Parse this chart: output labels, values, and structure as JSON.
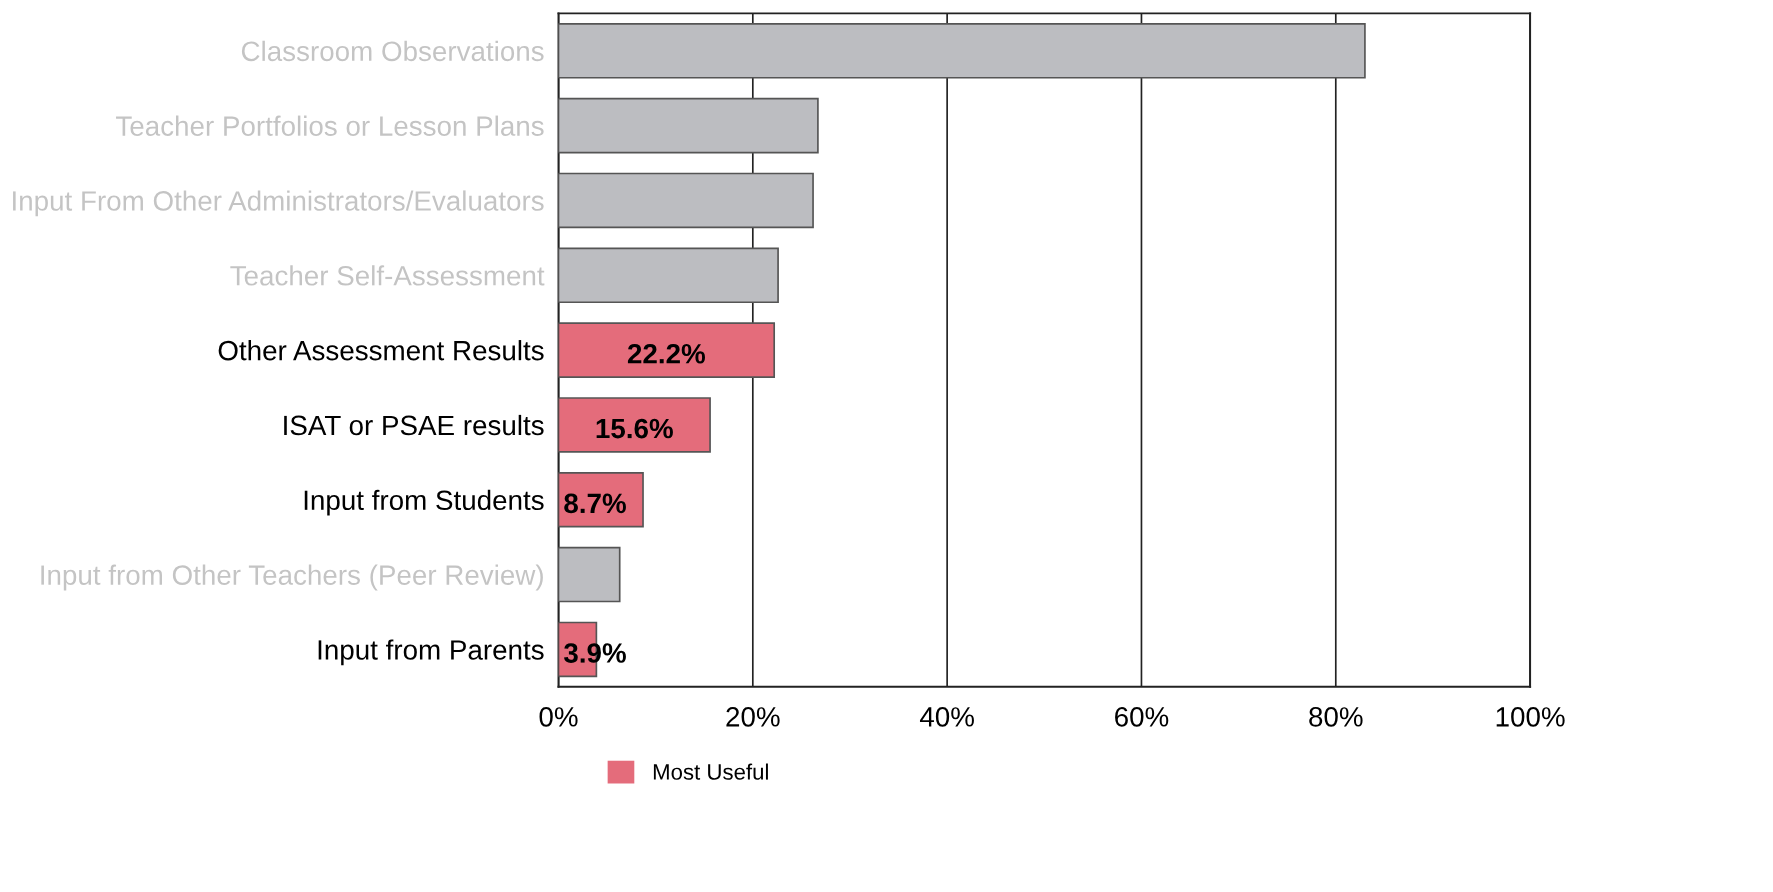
{
  "chart_data": {
    "type": "bar",
    "orientation": "horizontal",
    "categories": [
      "Classroom Observations",
      "Teacher Portfolios or Lesson Plans",
      "Input From Other Administrators/Evaluators",
      "Teacher Self-Assessment",
      "Other Assessment Results",
      "ISAT or PSAE results",
      "Input from Students",
      "Input from Other Teachers (Peer Review)",
      "Input from Parents"
    ],
    "series": [
      {
        "color": "#bcbdc1",
        "values": [
          83.0,
          26.7,
          26.2,
          22.6,
          null,
          null,
          null,
          6.3,
          null
        ]
      },
      {
        "name": "Most Useful",
        "color": "#e46c7b",
        "values": [
          null,
          null,
          null,
          null,
          22.2,
          15.6,
          8.7,
          null,
          3.9
        ],
        "value_labels": [
          null,
          null,
          null,
          null,
          "22.2%",
          "15.6%",
          "8.7%",
          null,
          "3.9%"
        ]
      }
    ],
    "xlim": [
      0,
      100
    ],
    "xticks": [
      {
        "value": 0,
        "label": "0%"
      },
      {
        "value": 20,
        "label": "20%"
      },
      {
        "value": 40,
        "label": "40%"
      },
      {
        "value": 60,
        "label": "60%"
      },
      {
        "value": 80,
        "label": "80%"
      },
      {
        "value": 100,
        "label": "100%"
      }
    ],
    "grid": "x",
    "legend": "bottom"
  }
}
